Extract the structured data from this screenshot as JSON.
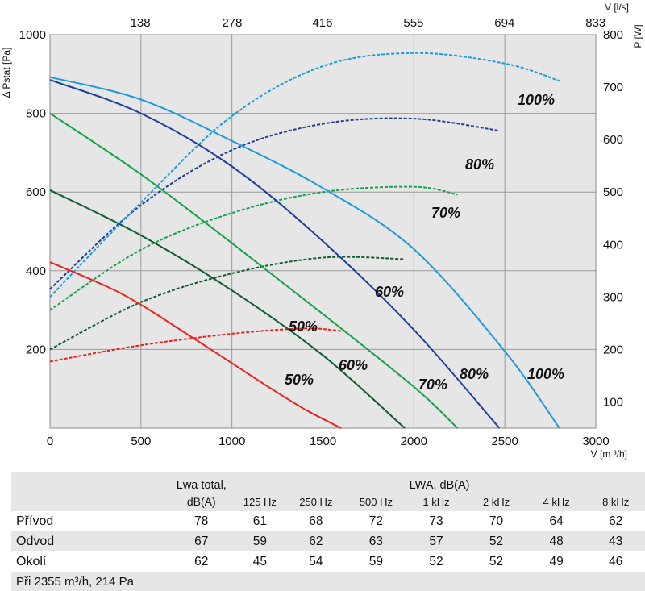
{
  "chart_data": {
    "type": "line",
    "x_axis_label": "V [m ³/h]",
    "x_range": [
      0,
      3000
    ],
    "x_ticks": [
      "0",
      "500",
      "1000",
      "1500",
      "2000",
      "2500",
      "3000"
    ],
    "top_axis_label": "V [l/s]",
    "top_ticks": [
      "138",
      "278",
      "416",
      "555",
      "694",
      "833"
    ],
    "y_left_label": "Δ Pstat [Pa]",
    "y_left_range": [
      0,
      1000
    ],
    "y_left_ticks": [
      "200",
      "400",
      "600",
      "800",
      "1000"
    ],
    "y_right_label": "P [W]",
    "y_right_range": [
      50,
      800
    ],
    "y_right_ticks": [
      "100",
      "200",
      "300",
      "400",
      "500",
      "600",
      "700",
      "800"
    ],
    "grid": true,
    "pressure_series": [
      {
        "label": "50%",
        "color": "#e8231f",
        "x": [
          0,
          400,
          800,
          1200,
          1400,
          1600
        ],
        "y": [
          422,
          340,
          225,
          105,
          48,
          0
        ]
      },
      {
        "label": "60%",
        "color": "#0c5e2e",
        "x": [
          0,
          500,
          1000,
          1500,
          1950
        ],
        "y": [
          605,
          490,
          350,
          185,
          0
        ]
      },
      {
        "label": "70%",
        "color": "#17a24a",
        "x": [
          0,
          500,
          1000,
          1500,
          2000,
          2240
        ],
        "y": [
          800,
          645,
          470,
          290,
          105,
          0
        ]
      },
      {
        "label": "80%",
        "color": "#1c3f9a",
        "x": [
          0,
          500,
          1000,
          1500,
          2000,
          2470
        ],
        "y": [
          885,
          800,
          665,
          475,
          250,
          0
        ]
      },
      {
        "label": "100%",
        "color": "#1b9bdc",
        "x": [
          0,
          500,
          1000,
          1500,
          2000,
          2500,
          2800
        ],
        "y": [
          892,
          835,
          730,
          610,
          455,
          195,
          0
        ]
      }
    ],
    "power_series": [
      {
        "label": "50%",
        "color": "#e8231f",
        "x": [
          0,
          500,
          1000,
          1400,
          1600
        ],
        "y": [
          177,
          208,
          230,
          240,
          235
        ]
      },
      {
        "label": "60%",
        "color": "#0c5e2e",
        "x": [
          0,
          500,
          1000,
          1500,
          1950
        ],
        "y": [
          200,
          290,
          345,
          375,
          372
        ]
      },
      {
        "label": "70%",
        "color": "#17a24a",
        "x": [
          0,
          500,
          1000,
          1500,
          2000,
          2240
        ],
        "y": [
          275,
          390,
          460,
          500,
          510,
          495
        ]
      },
      {
        "label": "80%",
        "color": "#1c3f9a",
        "x": [
          0,
          500,
          1000,
          1500,
          2000,
          2470
        ],
        "y": [
          315,
          475,
          580,
          630,
          640,
          617
        ]
      },
      {
        "label": "100%",
        "color": "#1b9bdc",
        "x": [
          0,
          500,
          1000,
          1500,
          2000,
          2500,
          2800
        ],
        "y": [
          300,
          480,
          645,
          740,
          765,
          745,
          712
        ]
      }
    ],
    "curve_labels": [
      "50%",
      "60%",
      "70%",
      "80%",
      "100%",
      "50%",
      "60%",
      "70%",
      "80%",
      "100%"
    ]
  },
  "table": {
    "lwa_total_header_line1": "Lwa total,",
    "lwa_total_header_line2": "dB(A)",
    "lwa_header": "LWA, dB(A)",
    "freq_headers": [
      "125 Hz",
      "250 Hz",
      "500 Hz",
      "1 kHz",
      "2 kHz",
      "4 kHz",
      "8 kHz"
    ],
    "rows": [
      {
        "name": "Přívod",
        "values": [
          "78",
          "61",
          "68",
          "72",
          "73",
          "70",
          "64",
          "62"
        ]
      },
      {
        "name": "Odvod",
        "values": [
          "67",
          "59",
          "62",
          "63",
          "57",
          "52",
          "48",
          "43"
        ]
      },
      {
        "name": "Okolí",
        "values": [
          "62",
          "45",
          "54",
          "59",
          "52",
          "52",
          "49",
          "46"
        ]
      }
    ],
    "footnote": "Při 2355 m³/h, 214 Pa"
  }
}
